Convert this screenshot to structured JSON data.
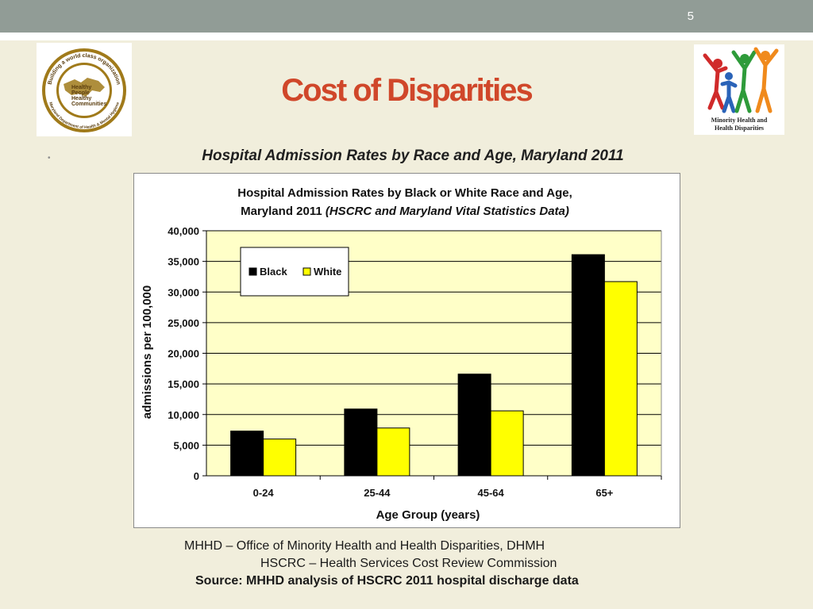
{
  "slide": {
    "number": "5",
    "title": "Cost of Disparities",
    "subtitle": "Hospital Admission Rates by Race and Age, Maryland 2011",
    "bullet": "•"
  },
  "logos": {
    "left": {
      "icon": "maryland-dhmh-seal-icon",
      "text_top": "Building a world class organization",
      "text_center": [
        "Healthy",
        "People",
        "Healthy",
        "Communities"
      ],
      "text_bottom": "Maryland Department of Health & Mental Hygiene",
      "colors": {
        "gold": "#a07a1a",
        "brown": "#5a3d0e"
      }
    },
    "right": {
      "icon": "minority-health-figures-icon",
      "caption_line1": "Minority Health and",
      "caption_line2": "Health Disparities",
      "colors": {
        "red": "#d02a2a",
        "blue": "#2a63b8",
        "green": "#2e9b3a",
        "orange": "#f08a1c"
      }
    }
  },
  "chart_data": {
    "type": "bar",
    "title_line1": "Hospital Admission Rates by Black or White Race and Age,",
    "title_line2_plain": "Maryland 2011 ",
    "title_line2_italic": "(HSCRC and Maryland Vital Statistics Data)",
    "xlabel": "Age Group (years)",
    "ylabel": "admissions per 100,000",
    "categories": [
      "0-24",
      "25-44",
      "45-64",
      "65+"
    ],
    "series": [
      {
        "name": "Black",
        "values": [
          7300,
          10900,
          16600,
          36100
        ],
        "color": "#000000"
      },
      {
        "name": "White",
        "values": [
          6000,
          7800,
          10600,
          31700
        ],
        "color": "#ffff00"
      }
    ],
    "ylim": [
      0,
      40000
    ],
    "yticks": [
      0,
      5000,
      10000,
      15000,
      20000,
      25000,
      30000,
      35000,
      40000
    ],
    "ytick_labels": [
      "0",
      "5,000",
      "10,000",
      "15,000",
      "20,000",
      "25,000",
      "30,000",
      "35,000",
      "40,000"
    ],
    "grid": true,
    "legend_position": "top-left",
    "plot_background": "#ffffc8"
  },
  "footer": {
    "line1": "MHHD – Office of Minority Health and Health Disparities, DHMH",
    "line2": "HSCRC – Health Services Cost Review Commission",
    "source": "Source: MHHD analysis of HSCRC 2011 hospital discharge data"
  }
}
